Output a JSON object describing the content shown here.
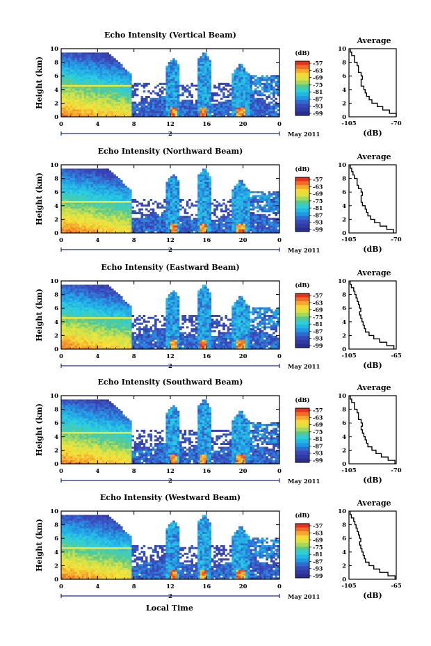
{
  "figure": {
    "bottom_xlabel": "Local Time",
    "month_label": "May 2011"
  },
  "chart_data": [
    {
      "type": "heatmap",
      "title": "Echo Intensity (Vertical Beam)",
      "ylabel": "Height (km)",
      "xticks": [
        "0",
        "4",
        "8",
        "12",
        "16",
        "20",
        "0"
      ],
      "yticks": [
        "0",
        "2",
        "4",
        "6",
        "8",
        "10"
      ],
      "day_label": "2",
      "month_label": "May 2011",
      "colorbar": {
        "label": "(dB)",
        "ticks": [
          "-57",
          "-63",
          "-69",
          "-75",
          "-81",
          "-87",
          "-93",
          "-99"
        ],
        "range": [
          -99,
          -57
        ]
      },
      "profile": {
        "title": "Average",
        "xlabel": "(dB)",
        "xticks": [
          "-105",
          "-70"
        ],
        "xlim": [
          -105,
          -70
        ],
        "yticks": [
          "0",
          "2",
          "4",
          "6",
          "8",
          "10"
        ],
        "heights": [
          0,
          0.5,
          1,
          1.5,
          2,
          2.5,
          3,
          3.5,
          4,
          4.5,
          5,
          5.5,
          6,
          6.5,
          7,
          7.5,
          8,
          8.5,
          9,
          9.5
        ],
        "values": [
          -70,
          -75,
          -80,
          -84,
          -88,
          -90,
          -92,
          -93,
          -94,
          -96,
          -96,
          -95,
          -96,
          -98,
          -98,
          -99,
          -101,
          -101,
          -103,
          -104
        ]
      }
    },
    {
      "type": "heatmap",
      "title": "Echo Intensity (Northward Beam)",
      "ylabel": "Height (km)",
      "xticks": [
        "0",
        "4",
        "8",
        "12",
        "16",
        "20",
        "0"
      ],
      "yticks": [
        "0",
        "2",
        "4",
        "6",
        "8",
        "10"
      ],
      "day_label": "2",
      "month_label": "May 2011",
      "colorbar": {
        "label": "(dB)",
        "ticks": [
          "-57",
          "-63",
          "-69",
          "-75",
          "-81",
          "-87",
          "-93",
          "-99"
        ],
        "range": [
          -99,
          -57
        ]
      },
      "profile": {
        "title": "Average",
        "xlabel": "(dB)",
        "xticks": [
          "-105",
          "-70"
        ],
        "xlim": [
          -105,
          -70
        ],
        "yticks": [
          "0",
          "2",
          "4",
          "6",
          "8",
          "10"
        ],
        "heights": [
          0,
          0.5,
          1,
          1.5,
          2,
          2.5,
          3,
          3.5,
          4,
          4.5,
          5,
          5.5,
          6,
          6.5,
          7,
          7.5,
          8,
          8.5,
          9,
          9.5
        ],
        "values": [
          -72,
          -77,
          -82,
          -86,
          -89,
          -91,
          -92,
          -93,
          -95,
          -96,
          -96,
          -95,
          -96,
          -98,
          -99,
          -99,
          -101,
          -102,
          -103,
          -104
        ]
      }
    },
    {
      "type": "heatmap",
      "title": "Echo Intensity (Eastward Beam)",
      "ylabel": "Height (km)",
      "xticks": [
        "0",
        "4",
        "8",
        "12",
        "16",
        "20",
        "0"
      ],
      "yticks": [
        "0",
        "2",
        "4",
        "6",
        "8",
        "10"
      ],
      "day_label": "2",
      "month_label": "May 2011",
      "colorbar": {
        "label": "(dB)",
        "ticks": [
          "-57",
          "-63",
          "-69",
          "-75",
          "-81",
          "-87",
          "-93",
          "-99"
        ],
        "range": [
          -99,
          -57
        ]
      },
      "profile": {
        "title": "Average",
        "xlabel": "(dB)",
        "xticks": [
          "-105",
          "-65"
        ],
        "xlim": [
          -105,
          -65
        ],
        "yticks": [
          "0",
          "2",
          "4",
          "6",
          "8",
          "10"
        ],
        "heights": [
          0,
          0.5,
          1,
          1.5,
          2,
          2.5,
          3,
          3.5,
          4,
          4.5,
          5,
          5.5,
          6,
          6.5,
          7,
          7.5,
          8,
          8.5,
          9,
          9.5
        ],
        "values": [
          -67,
          -73,
          -79,
          -84,
          -88,
          -91,
          -92,
          -93,
          -94,
          -95,
          -96,
          -95,
          -96,
          -97,
          -98,
          -99,
          -100,
          -101,
          -103,
          -104
        ]
      }
    },
    {
      "type": "heatmap",
      "title": "Echo Intensity (Southward Beam)",
      "ylabel": "Height (km)",
      "xticks": [
        "0",
        "4",
        "8",
        "12",
        "16",
        "20",
        "0"
      ],
      "yticks": [
        "0",
        "2",
        "4",
        "6",
        "8",
        "10"
      ],
      "day_label": "2",
      "month_label": "May 2011",
      "colorbar": {
        "label": "(dB)",
        "ticks": [
          "-57",
          "-63",
          "-69",
          "-75",
          "-81",
          "-87",
          "-93",
          "-99"
        ],
        "range": [
          -99,
          -57
        ]
      },
      "profile": {
        "title": "Average",
        "xlabel": "(dB)",
        "xticks": [
          "-105",
          "-70"
        ],
        "xlim": [
          -105,
          -70
        ],
        "yticks": [
          "0",
          "2",
          "4",
          "6",
          "8",
          "10"
        ],
        "heights": [
          0,
          0.5,
          1,
          1.5,
          2,
          2.5,
          3,
          3.5,
          4,
          4.5,
          5,
          5.5,
          6,
          6.5,
          7,
          7.5,
          8,
          8.5,
          9,
          9.5
        ],
        "values": [
          -71,
          -76,
          -81,
          -85,
          -88,
          -91,
          -92,
          -93,
          -94,
          -95,
          -96,
          -95,
          -96,
          -98,
          -98,
          -99,
          -101,
          -101,
          -103,
          -104
        ]
      }
    },
    {
      "type": "heatmap",
      "title": "Echo Intensity (Westward Beam)",
      "ylabel": "Height (km)",
      "xticks": [
        "0",
        "4",
        "8",
        "12",
        "16",
        "20",
        "0"
      ],
      "yticks": [
        "0",
        "2",
        "4",
        "6",
        "8",
        "10"
      ],
      "day_label": "2",
      "month_label": "May 2011",
      "colorbar": {
        "label": "(dB)",
        "ticks": [
          "-57",
          "-63",
          "-69",
          "-75",
          "-81",
          "-87",
          "-93",
          "-99"
        ],
        "range": [
          -99,
          -57
        ]
      },
      "profile": {
        "title": "Average",
        "xlabel": "(dB)",
        "xticks": [
          "-105",
          "-65"
        ],
        "xlim": [
          -105,
          -65
        ],
        "yticks": [
          "0",
          "2",
          "4",
          "6",
          "8",
          "10"
        ],
        "heights": [
          0,
          0.5,
          1,
          1.5,
          2,
          2.5,
          3,
          3.5,
          4,
          4.5,
          5,
          5.5,
          6,
          6.5,
          7,
          7.5,
          8,
          8.5,
          9,
          9.5
        ],
        "values": [
          -66,
          -72,
          -79,
          -84,
          -88,
          -91,
          -92,
          -93,
          -94,
          -95,
          -96,
          -95,
          -96,
          -97,
          -98,
          -99,
          -100,
          -101,
          -103,
          -104
        ]
      }
    }
  ]
}
